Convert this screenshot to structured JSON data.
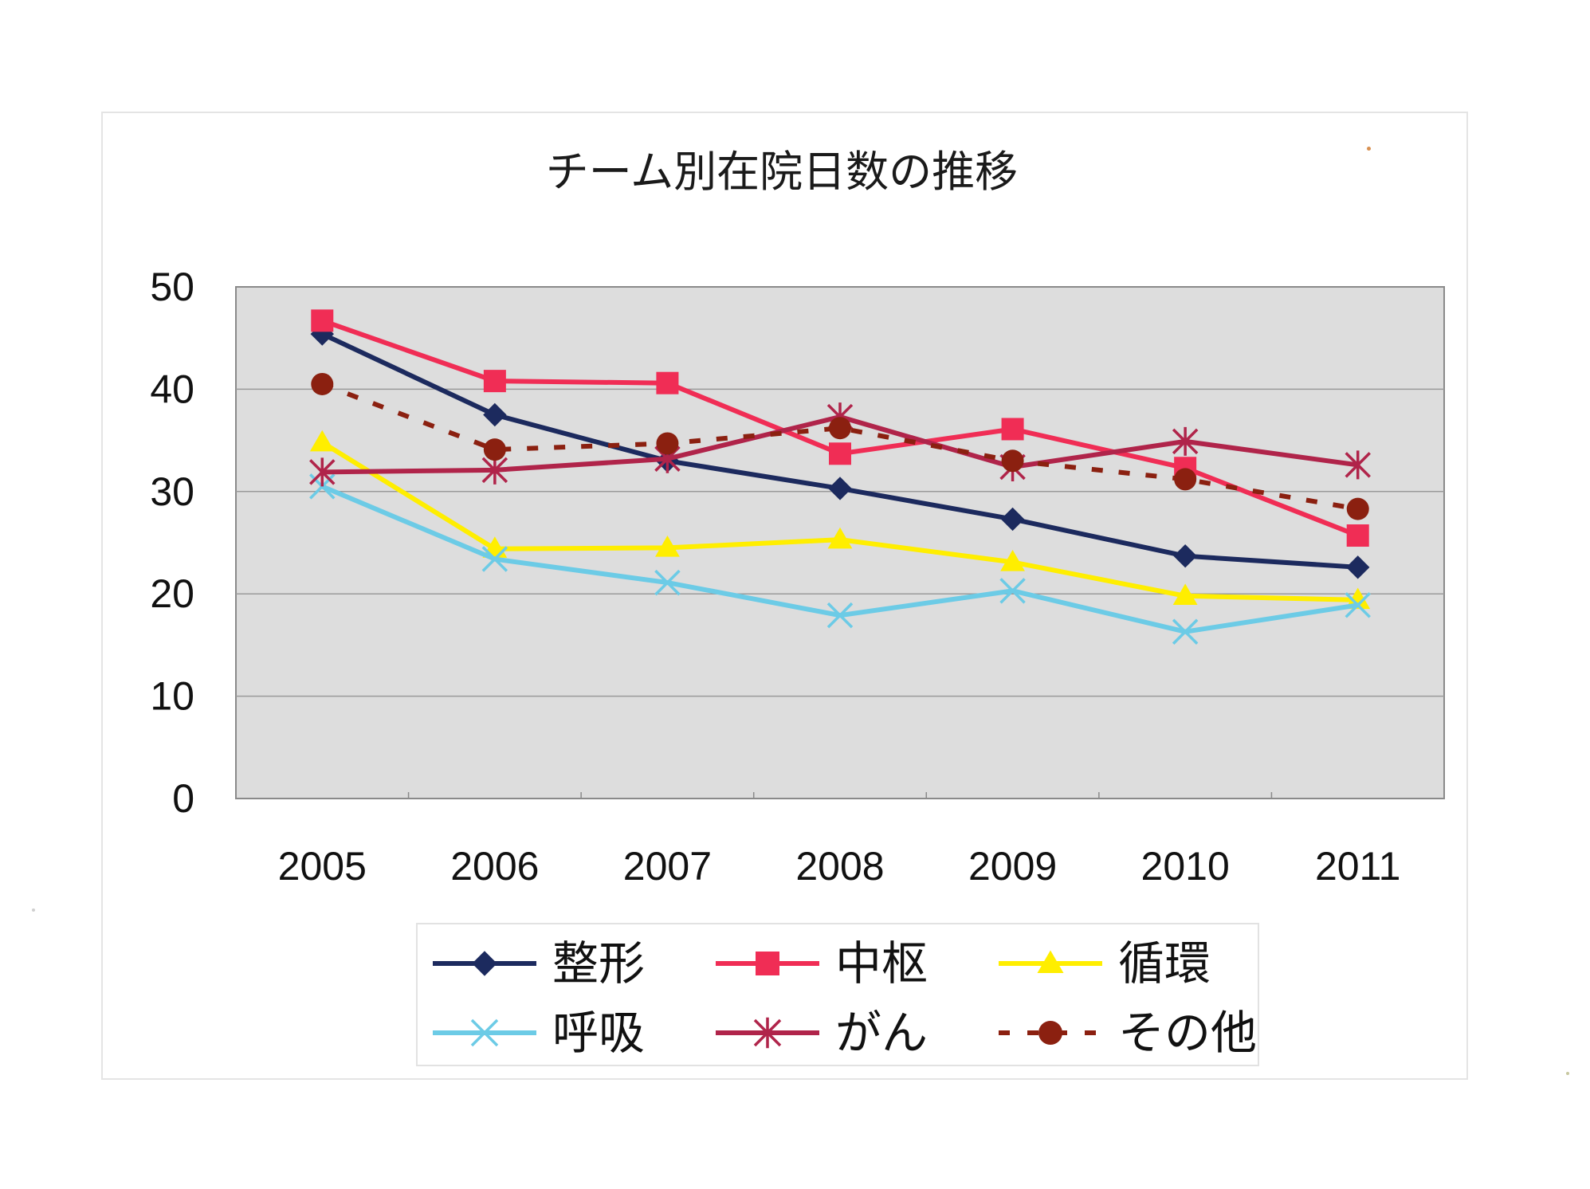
{
  "chart_data": {
    "type": "line",
    "title": "チーム別在院日数の推移",
    "xlabel": "",
    "ylabel": "",
    "x": [
      "2005",
      "2006",
      "2007",
      "2008",
      "2009",
      "2010",
      "2011"
    ],
    "ylim": [
      0,
      50
    ],
    "yticks": [
      "0",
      "10",
      "20",
      "30",
      "40",
      "50"
    ],
    "grid": true,
    "legend_position": "bottom",
    "series": [
      {
        "name": "整形",
        "values": [
          45.4,
          37.5,
          33.0,
          30.3,
          27.3,
          23.7,
          22.6
        ],
        "color": "#1c2a5e",
        "marker": "diamond",
        "dash": false
      },
      {
        "name": "中枢",
        "values": [
          46.7,
          40.8,
          40.6,
          33.7,
          36.1,
          32.3,
          25.7
        ],
        "color": "#f02d55",
        "marker": "square",
        "dash": false
      },
      {
        "name": "循環",
        "values": [
          34.8,
          24.4,
          24.5,
          25.3,
          23.1,
          19.8,
          19.4
        ],
        "color": "#ffee00",
        "marker": "triangle",
        "dash": false
      },
      {
        "name": "呼吸",
        "values": [
          30.5,
          23.4,
          21.1,
          17.9,
          20.3,
          16.3,
          18.9
        ],
        "color": "#6ccbe6",
        "marker": "x",
        "dash": false
      },
      {
        "name": "がん",
        "values": [
          31.9,
          32.1,
          33.2,
          37.3,
          32.4,
          34.9,
          32.6
        ],
        "color": "#b0244a",
        "marker": "star",
        "dash": false
      },
      {
        "name": "その他",
        "values": [
          40.5,
          34.1,
          34.7,
          36.2,
          33.0,
          31.2,
          28.3
        ],
        "color": "#8b2010",
        "marker": "circle",
        "dash": true
      }
    ]
  }
}
